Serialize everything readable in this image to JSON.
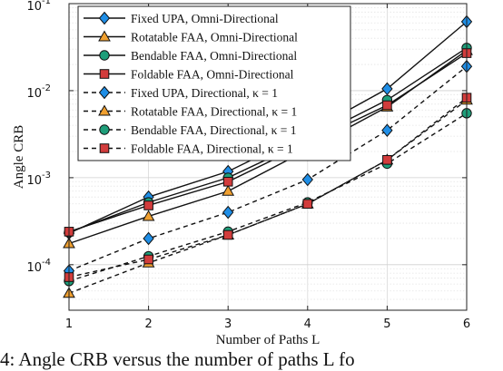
{
  "chart_data": {
    "type": "line",
    "xlabel": "Number of Paths L",
    "ylabel": "Angle CRB",
    "x": [
      1,
      2,
      3,
      4,
      5,
      6
    ],
    "xlim": [
      1,
      6
    ],
    "ylim": [
      3e-05,
      0.1
    ],
    "yscale": "log",
    "x_ticks": [
      "1",
      "2",
      "3",
      "4",
      "5",
      "6"
    ],
    "y_ticks": [
      {
        "base": "10",
        "exp": "-4",
        "value": 0.0001
      },
      {
        "base": "10",
        "exp": "-3",
        "value": 0.001
      },
      {
        "base": "10",
        "exp": "-2",
        "value": 0.01
      },
      {
        "base": "10",
        "exp": "-1",
        "value": 0.1
      }
    ],
    "grid": true,
    "legend_position": "top-left",
    "series": [
      {
        "name": "Fixed UPA, Omni-Directional",
        "marker": "diamond",
        "dash": "solid",
        "color": "#1f8ee6",
        "values": [
          0.00023,
          0.0006,
          0.00118,
          0.0033,
          0.0105,
          0.062
        ]
      },
      {
        "name": "Rotatable FAA, Omni-Directional",
        "marker": "triangle",
        "dash": "solid",
        "color": "#f0a030",
        "values": [
          0.000175,
          0.00036,
          0.0007,
          0.0021,
          0.0065,
          0.029
        ]
      },
      {
        "name": "Bendable FAA, Omni-Directional",
        "marker": "circle",
        "dash": "solid",
        "color": "#1f9e7a",
        "values": [
          0.000235,
          0.00052,
          0.001,
          0.0027,
          0.0078,
          0.031
        ]
      },
      {
        "name": "Foldable FAA, Omni-Directional",
        "marker": "square",
        "dash": "solid",
        "color": "#d23c3c",
        "values": [
          0.00024,
          0.00048,
          0.0009,
          0.0025,
          0.0068,
          0.027
        ]
      },
      {
        "name": "Fixed UPA, Directional, κ = 1",
        "marker": "diamond",
        "dash": "dashed",
        "color": "#1f8ee6",
        "values": [
          8.5e-05,
          0.0002,
          0.0004,
          0.00095,
          0.0035,
          0.019
        ]
      },
      {
        "name": "Rotatable FAA, Directional, κ = 1",
        "marker": "triangle",
        "dash": "dashed",
        "color": "#f0a030",
        "values": [
          4.7e-05,
          0.000105,
          0.00022,
          0.0005,
          0.0016,
          0.0078
        ]
      },
      {
        "name": "Bendable FAA, Directional, κ = 1",
        "marker": "circle",
        "dash": "dashed",
        "color": "#1f9e7a",
        "values": [
          6.5e-05,
          0.000125,
          0.00024,
          0.00052,
          0.00145,
          0.0055
        ]
      },
      {
        "name": "Foldable FAA, Directional, κ = 1",
        "marker": "square",
        "dash": "dashed",
        "color": "#d23c3c",
        "values": [
          7.2e-05,
          0.000115,
          0.00022,
          0.0005,
          0.0016,
          0.0083
        ]
      }
    ]
  },
  "caption": {
    "text": "4: Angle CRB versus the number of paths L fo"
  }
}
